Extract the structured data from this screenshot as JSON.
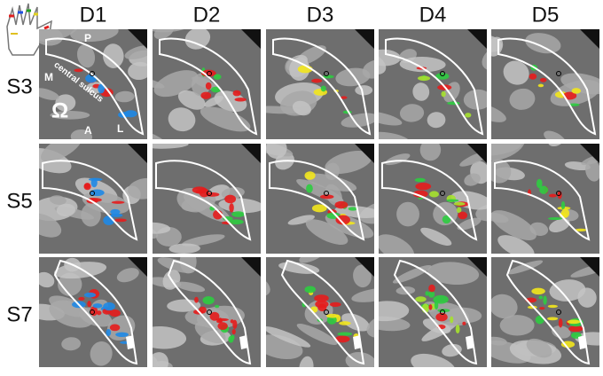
{
  "columns": [
    "D1",
    "D2",
    "D3",
    "D4",
    "D5"
  ],
  "rows": [
    "S3",
    "S5",
    "S7"
  ],
  "annotations": {
    "posterior": "P",
    "medial": "M",
    "anterior": "A",
    "lateral": "L",
    "sulcus": "central sulcus",
    "omega": "Ω"
  }
}
